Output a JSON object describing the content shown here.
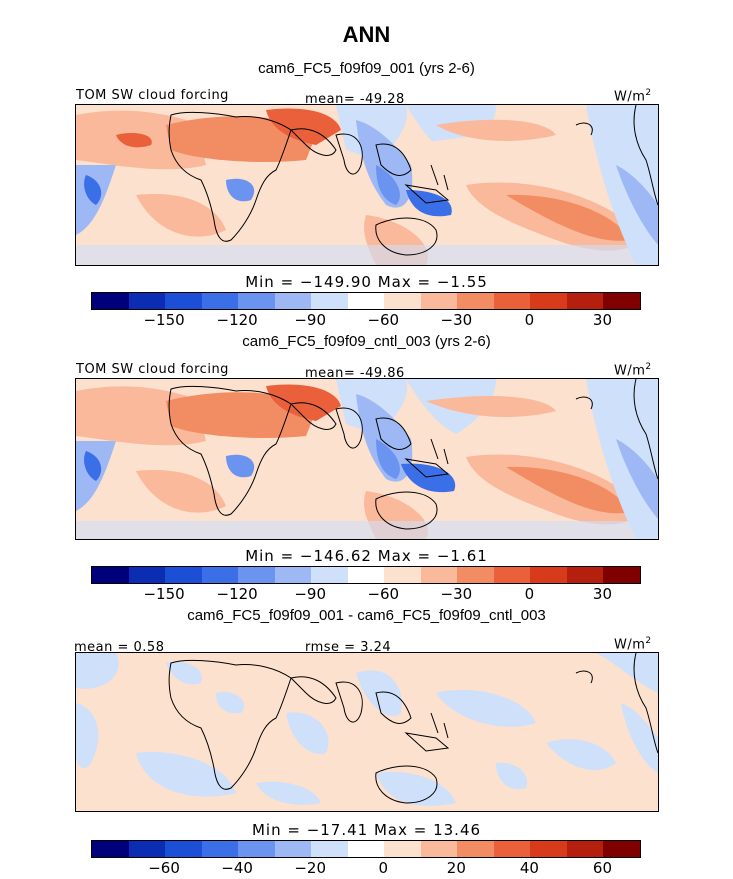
{
  "title": "ANN",
  "panels": [
    {
      "subtitle": "cam6_FC5_f09f09_001 (yrs 2-6)",
      "left_label": "TOM SW cloud forcing",
      "center_label": "mean= -49.28",
      "units": "W/m",
      "units_sup": "2",
      "stats": "Min = −149.90 Max = −1.55"
    },
    {
      "subtitle": "cam6_FC5_f09f09_cntl_003 (yrs 2-6)",
      "left_label": "TOM SW cloud forcing",
      "center_label": "mean= -49.86",
      "units": "W/m",
      "units_sup": "2",
      "stats": "Min = −146.62 Max = −1.61"
    },
    {
      "subtitle": "cam6_FC5_f09f09_001 - cam6_FC5_f09f09_cntl_003",
      "left_label": "mean = 0.58",
      "center_label": "rmse = 3.24",
      "units": "W/m",
      "units_sup": "2",
      "stats": "Min = −17.41 Max = 13.46"
    }
  ],
  "colorbar_abs": {
    "colors": [
      "#00007a",
      "#0a2db4",
      "#1b4fd6",
      "#3b6fe8",
      "#6b93f0",
      "#9db8f4",
      "#cfe0fa",
      "#ffffff",
      "#fde1cf",
      "#f9b99a",
      "#f28c63",
      "#e9603a",
      "#d83a1c",
      "#b51f0e",
      "#800000"
    ],
    "ticks": [
      "−150",
      "−120",
      "−90",
      "−60",
      "−30",
      "0",
      "30"
    ]
  },
  "colorbar_diff": {
    "colors": [
      "#00007a",
      "#0a2db4",
      "#1b4fd6",
      "#3b6fe8",
      "#6b93f0",
      "#9db8f4",
      "#cfe0fa",
      "#ffffff",
      "#fde1cf",
      "#f9b99a",
      "#f28c63",
      "#e9603a",
      "#d83a1c",
      "#b51f0e",
      "#800000"
    ],
    "ticks": [
      "−60",
      "−40",
      "−20",
      "0",
      "20",
      "40",
      "60"
    ]
  }
}
